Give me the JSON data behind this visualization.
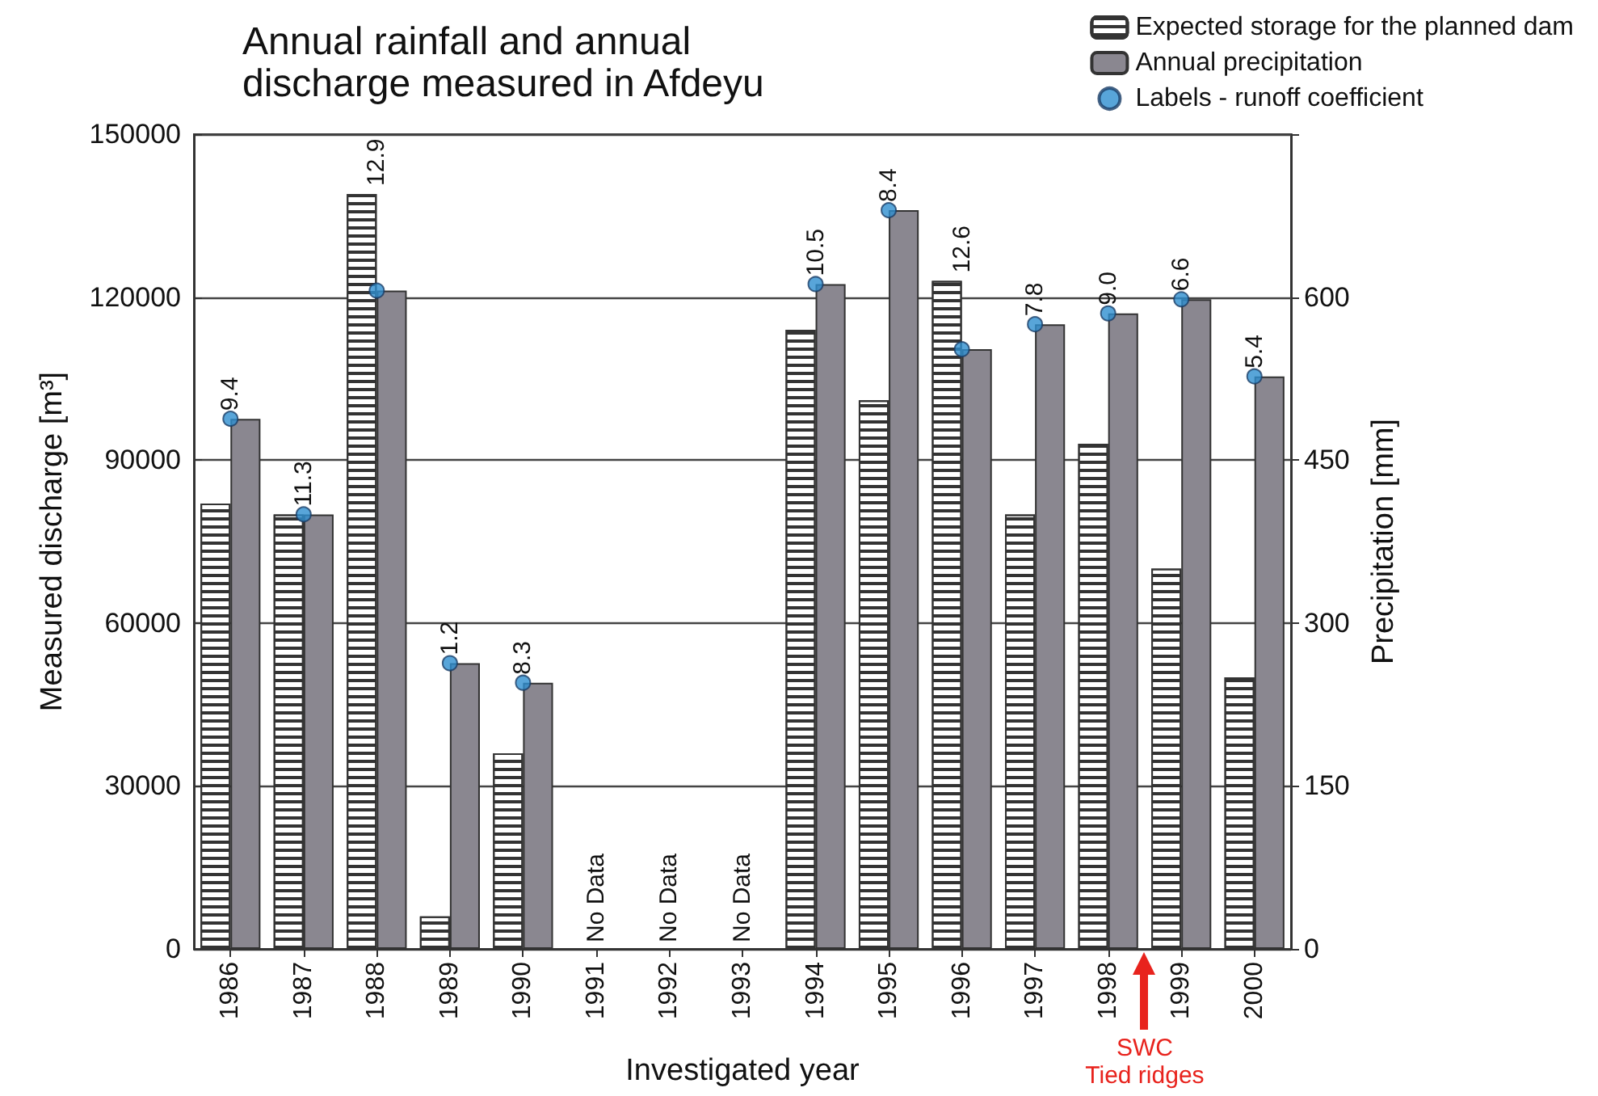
{
  "chart_data": {
    "type": "bar",
    "title": "Annual rainfall and annual discharge measured in Afdeyu",
    "xlabel": "Investigated year",
    "ylabel": "Measured discharge [m³]",
    "y2label": "Precipitation [mm]",
    "categories": [
      "1986",
      "1987",
      "1988",
      "1989",
      "1990",
      "1991",
      "1992",
      "1993",
      "1994",
      "1995",
      "1996",
      "1997",
      "1998",
      "1999",
      "2000"
    ],
    "series": [
      {
        "name": "Expected storage for the planned dam",
        "color": "#ffffff",
        "values": [
          82000,
          80000,
          139000,
          6000,
          36000,
          null,
          null,
          null,
          114000,
          101000,
          123000,
          80000,
          93000,
          70000,
          50000
        ]
      },
      {
        "name": "Annual precipitation",
        "axis": "y2",
        "color": "#8a8790",
        "values": [
          488,
          400,
          606,
          263,
          245,
          null,
          null,
          null,
          612,
          680,
          552,
          575,
          585,
          598,
          527
        ]
      },
      {
        "name": "Labels - runoff coefficient",
        "type": "scatter",
        "axis": "y2",
        "color": "#2e8fd0",
        "marker": "circle",
        "values": [
          488,
          400,
          606,
          263,
          245,
          null,
          null,
          null,
          612,
          680,
          552,
          575,
          585,
          598,
          527
        ]
      }
    ],
    "ylim": [
      0,
      150000
    ],
    "yticks": [
      0,
      30000,
      60000,
      90000,
      120000,
      150000
    ],
    "y2lim": [
      0,
      750
    ],
    "y2ticks": [
      0,
      150,
      300,
      450,
      600,
      {
        "value": 750,
        "label": null
      }
    ],
    "grid": "y",
    "legend": "top right",
    "annotations": [
      {
        "text": "9.4",
        "x": "1986",
        "y": 97600
      },
      {
        "text": "11.3",
        "x": "1987",
        "y": 80000
      },
      {
        "text": "12.9",
        "x": "1988",
        "y": 139000
      },
      {
        "text": "1.2",
        "x": "1989",
        "y": 52600
      },
      {
        "text": "8.3",
        "x": "1990",
        "y": 49000
      },
      {
        "text": "10.5",
        "x": "1994",
        "y": 122400
      },
      {
        "text": "8.4",
        "x": "1995",
        "y": 136000
      },
      {
        "text": "12.6",
        "x": "1996",
        "y": 123000
      },
      {
        "text": "7.8",
        "x": "1997",
        "y": 115000
      },
      {
        "text": "9.0",
        "x": "1998",
        "y": 117000
      },
      {
        "text": "6.6",
        "x": "1999",
        "y": 119600
      },
      {
        "text": "5.4",
        "x": "2000",
        "y": 105400
      },
      "No Data",
      "No Data",
      "No Data",
      "SWC\nTied ridges"
    ]
  }
}
